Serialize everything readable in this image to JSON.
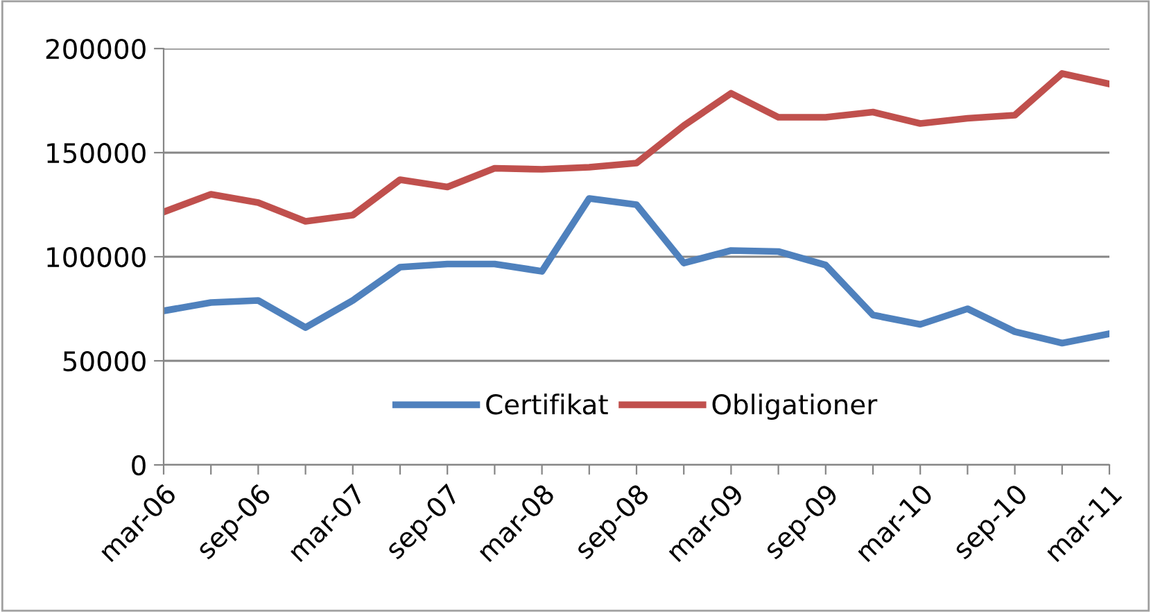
{
  "chart_data": {
    "type": "line",
    "categories": [
      "mar-06",
      null,
      "sep-06",
      null,
      "mar-07",
      null,
      "sep-07",
      null,
      "mar-08",
      null,
      "sep-08",
      null,
      "mar-09",
      null,
      "sep-09",
      null,
      "mar-10",
      null,
      "sep-10",
      null,
      "mar-11"
    ],
    "series": [
      {
        "name": "Certifikat",
        "color": "#4f81bd",
        "values": [
          74000,
          78000,
          79000,
          66000,
          79000,
          95000,
          96500,
          96500,
          93000,
          128000,
          125000,
          97000,
          103000,
          102500,
          96000,
          72000,
          67500,
          75000,
          64000,
          58500,
          63000
        ]
      },
      {
        "name": "Obligationer",
        "color": "#c0504d",
        "values": [
          121500,
          130000,
          126000,
          117000,
          120000,
          137000,
          133500,
          142500,
          142000,
          143000,
          145000,
          163000,
          178500,
          167000,
          167000,
          169500,
          164000,
          166500,
          168000,
          188000,
          183000
        ]
      }
    ],
    "ylim": [
      0,
      200000
    ],
    "yticks": [
      0,
      50000,
      100000,
      150000,
      200000
    ],
    "grid": "y",
    "legend": "bottom",
    "marker": "none",
    "line_style": "solid"
  }
}
